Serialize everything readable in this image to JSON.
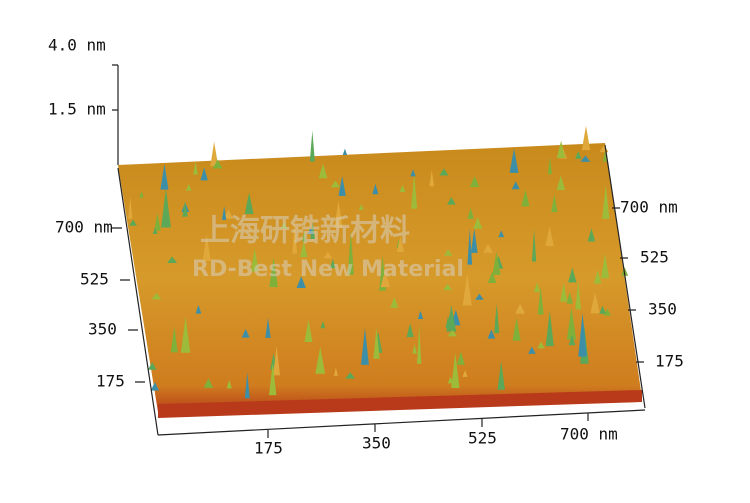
{
  "z_axis": {
    "labels": [
      "4.0 nm",
      "1.5 nm"
    ]
  },
  "left_axis": {
    "labels": [
      "700 nm",
      "525",
      "350",
      "175"
    ]
  },
  "right_axis": {
    "labels": [
      "700 nm",
      "525",
      "350",
      "175"
    ]
  },
  "bottom_axis": {
    "labels": [
      "175",
      "350",
      "525",
      "700 nm"
    ]
  },
  "watermark": {
    "chinese": "上海研锆新材料",
    "english": "RD-Best New Material"
  }
}
